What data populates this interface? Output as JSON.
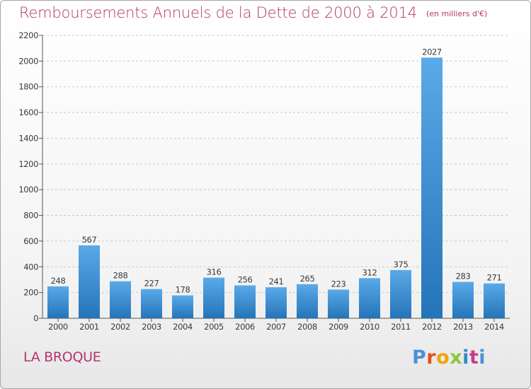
{
  "header": {
    "title": "Remboursements Annuels de la Dette de 2000 à 2014",
    "unit": "(en milliers d'€)"
  },
  "footer": {
    "commune": "LA BROQUE",
    "logo_text": "Proxiti"
  },
  "colors": {
    "title": "#b4366e",
    "bar_light": "#5aaae9",
    "bar_dark": "#2474b8",
    "grid": "#c8c8c8"
  },
  "chart_data": {
    "type": "bar",
    "title": "Remboursements Annuels de la Dette de 2000 à 2014",
    "subtitle": "(en milliers d'€)",
    "xlabel": "",
    "ylabel": "",
    "categories": [
      "2000",
      "2001",
      "2002",
      "2003",
      "2004",
      "2005",
      "2006",
      "2007",
      "2008",
      "2009",
      "2010",
      "2011",
      "2012",
      "2013",
      "2014"
    ],
    "values": [
      248,
      567,
      288,
      227,
      178,
      316,
      256,
      241,
      265,
      223,
      312,
      375,
      2027,
      283,
      271
    ],
    "ylim": [
      0,
      2200
    ],
    "yticks": [
      0,
      200,
      400,
      600,
      800,
      1000,
      1200,
      1400,
      1600,
      1800,
      2000,
      2200
    ],
    "grid": "horizontal dashed",
    "data_labels": true
  }
}
